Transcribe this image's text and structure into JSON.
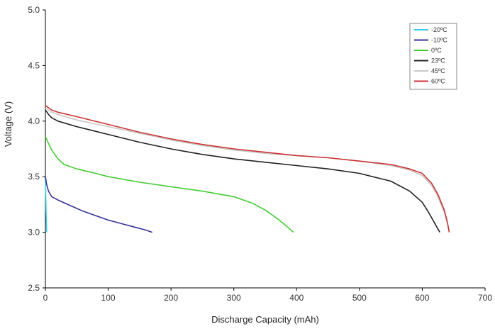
{
  "chart_data": {
    "type": "line",
    "title": "",
    "xlabel": "Discharge Capacity (mAh)",
    "ylabel": "Voltage (V)",
    "xlim": [
      0,
      700
    ],
    "ylim": [
      2.5,
      5.0
    ],
    "x_ticks": [
      "0",
      "100",
      "200",
      "300",
      "400",
      "500",
      "600",
      "700"
    ],
    "y_ticks": [
      "2.5",
      "3.0",
      "3.5",
      "4.0",
      "4.5",
      "5.0"
    ],
    "grid": false,
    "legend_position": "top-right",
    "series": [
      {
        "name": "-20ºC",
        "color": "#33ccee",
        "x": [
          0,
          1,
          2
        ],
        "y": [
          3.5,
          3.2,
          3.0
        ]
      },
      {
        "name": "-10ºC",
        "color": "#333399",
        "x": [
          0,
          2,
          5,
          10,
          20,
          40,
          60,
          80,
          100,
          120,
          140,
          160,
          170
        ],
        "y": [
          3.5,
          3.43,
          3.37,
          3.32,
          3.29,
          3.24,
          3.19,
          3.15,
          3.11,
          3.08,
          3.05,
          3.02,
          3.0
        ]
      },
      {
        "name": "0ºC",
        "color": "#44cc33",
        "x": [
          0,
          5,
          10,
          20,
          30,
          50,
          80,
          100,
          150,
          200,
          250,
          300,
          330,
          350,
          370,
          385,
          395
        ],
        "y": [
          3.86,
          3.8,
          3.74,
          3.66,
          3.61,
          3.57,
          3.53,
          3.5,
          3.45,
          3.41,
          3.37,
          3.32,
          3.26,
          3.2,
          3.12,
          3.05,
          3.0
        ]
      },
      {
        "name": "23ºC",
        "color": "#222222",
        "x": [
          0,
          5,
          10,
          20,
          50,
          100,
          150,
          200,
          250,
          300,
          350,
          400,
          450,
          500,
          550,
          580,
          600,
          610,
          620,
          628
        ],
        "y": [
          4.1,
          4.06,
          4.03,
          4.0,
          3.95,
          3.88,
          3.81,
          3.75,
          3.7,
          3.66,
          3.63,
          3.6,
          3.57,
          3.53,
          3.46,
          3.37,
          3.27,
          3.18,
          3.08,
          3.0
        ]
      },
      {
        "name": "45ºC",
        "color": "#c8c8c8",
        "x": [
          0,
          5,
          10,
          20,
          50,
          100,
          150,
          200,
          250,
          300,
          350,
          400,
          450,
          500,
          550,
          580,
          600,
          615,
          625,
          635,
          640,
          643
        ],
        "y": [
          4.12,
          4.1,
          4.08,
          4.06,
          4.01,
          3.95,
          3.89,
          3.83,
          3.78,
          3.74,
          3.71,
          3.69,
          3.67,
          3.64,
          3.6,
          3.56,
          3.51,
          3.42,
          3.32,
          3.18,
          3.08,
          3.0
        ]
      },
      {
        "name": "60ºC",
        "color": "#cc3333",
        "x": [
          0,
          5,
          10,
          20,
          50,
          100,
          150,
          200,
          250,
          300,
          350,
          400,
          450,
          500,
          550,
          580,
          600,
          615,
          625,
          635,
          640,
          643
        ],
        "y": [
          4.14,
          4.12,
          4.1,
          4.08,
          4.04,
          3.97,
          3.9,
          3.84,
          3.79,
          3.75,
          3.72,
          3.69,
          3.67,
          3.64,
          3.61,
          3.57,
          3.53,
          3.44,
          3.34,
          3.2,
          3.09,
          3.0
        ]
      }
    ]
  }
}
